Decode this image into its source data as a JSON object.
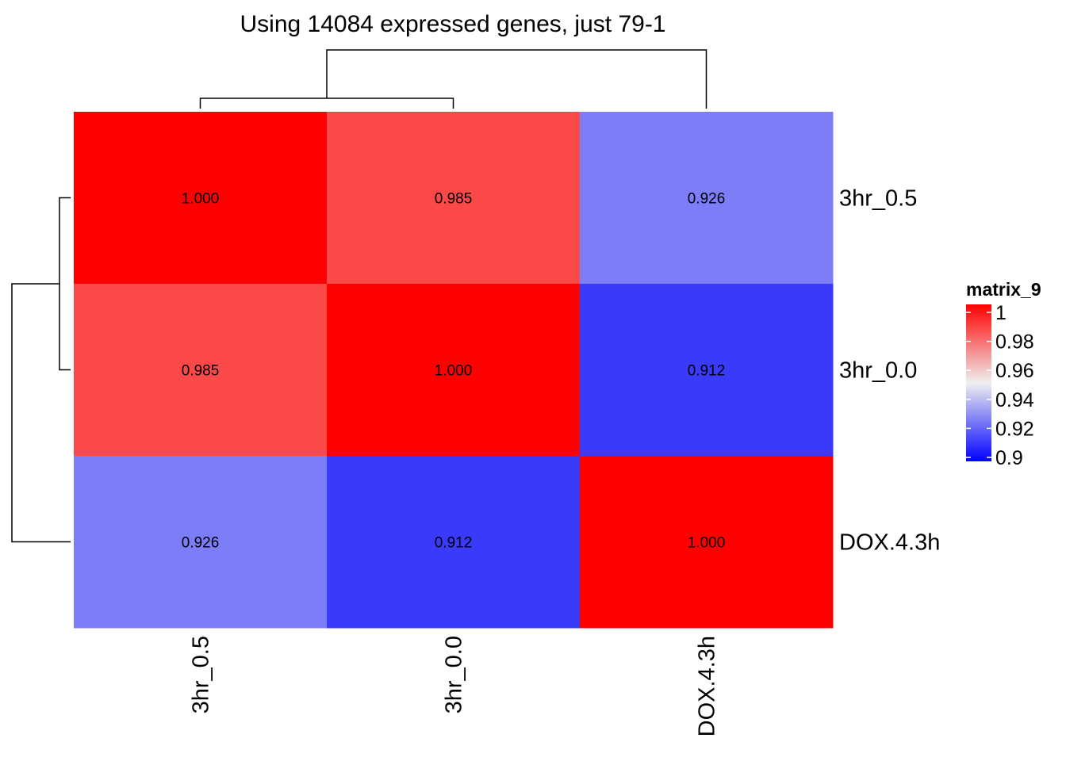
{
  "chart_data": {
    "type": "heatmap",
    "title": "Using 14084 expressed genes, just 79-1",
    "columns": [
      "3hr_0.5",
      "3hr_0.0",
      "DOX.4.3h"
    ],
    "rows": [
      "3hr_0.5",
      "3hr_0.0",
      "DOX.4.3h"
    ],
    "values": [
      [
        1.0,
        0.985,
        0.926
      ],
      [
        0.985,
        1.0,
        0.912
      ],
      [
        0.926,
        0.912,
        1.0
      ]
    ],
    "value_labels": [
      [
        "1.000",
        "0.985",
        "0.926"
      ],
      [
        "0.985",
        "1.000",
        "0.912"
      ],
      [
        "0.926",
        "0.912",
        "1.000"
      ]
    ],
    "legend": {
      "title": "matrix_9",
      "ticks": [
        "1",
        "0.98",
        "0.96",
        "0.94",
        "0.92",
        "0.9"
      ],
      "tick_values": [
        1,
        0.98,
        0.96,
        0.94,
        0.92,
        0.9
      ],
      "range": [
        0.9,
        1.0
      ],
      "colors": {
        "low": "#0000ff",
        "mid": "#f0f0f0",
        "high": "#ff0000"
      },
      "mid_value": 0.95,
      "placement": "right"
    },
    "column_dendrogram": true,
    "row_dendrogram": true
  }
}
